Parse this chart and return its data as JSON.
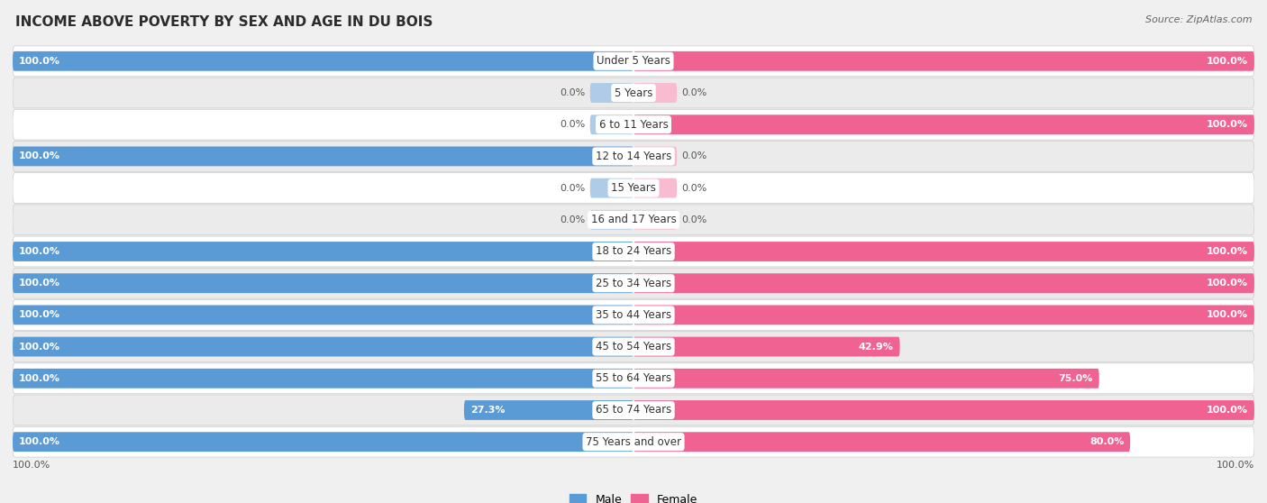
{
  "title": "INCOME ABOVE POVERTY BY SEX AND AGE IN DU BOIS",
  "source": "Source: ZipAtlas.com",
  "categories": [
    "Under 5 Years",
    "5 Years",
    "6 to 11 Years",
    "12 to 14 Years",
    "15 Years",
    "16 and 17 Years",
    "18 to 24 Years",
    "25 to 34 Years",
    "35 to 44 Years",
    "45 to 54 Years",
    "55 to 64 Years",
    "65 to 74 Years",
    "75 Years and over"
  ],
  "male": [
    100.0,
    0.0,
    0.0,
    100.0,
    0.0,
    0.0,
    100.0,
    100.0,
    100.0,
    100.0,
    100.0,
    27.3,
    100.0
  ],
  "female": [
    100.0,
    0.0,
    100.0,
    0.0,
    0.0,
    0.0,
    100.0,
    100.0,
    100.0,
    42.9,
    75.0,
    100.0,
    80.0
  ],
  "male_color": "#5b9bd5",
  "female_color": "#f06292",
  "male_color_light": "#aecce8",
  "female_color_light": "#f8bbd0",
  "bg_color": "#f0f0f0",
  "row_color_odd": "#ffffff",
  "row_color_even": "#ebebeb",
  "title_fontsize": 11,
  "label_fontsize": 8.5,
  "value_fontsize": 8,
  "axis_label_fontsize": 8,
  "max_val": 100.0
}
